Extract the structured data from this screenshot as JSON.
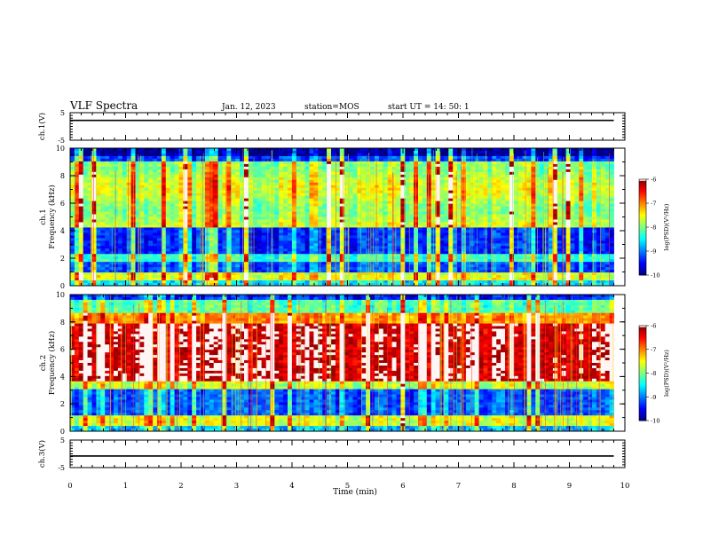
{
  "header": {
    "title": "VLF Spectra",
    "date": "Jan. 12, 2023",
    "station": "station=MOS",
    "start": "start UT =  14: 50: 1"
  },
  "chart_data": [
    {
      "type": "line",
      "panel": "ch1-waveform",
      "ylabel": "ch.1(V)",
      "ylim": [
        -5,
        5
      ],
      "yticks": [
        "5",
        "-5"
      ],
      "series": [
        {
          "x": [
            0,
            9.8
          ],
          "y": [
            2.2,
            2.2
          ]
        }
      ]
    },
    {
      "type": "heatmap",
      "panel": "ch1-spectrogram",
      "ylabel": "ch.1\nFrequency (kHz)",
      "ylim": [
        0,
        10
      ],
      "yticks": [
        "0",
        "2",
        "4",
        "6",
        "8",
        "10"
      ],
      "xlim": [
        0,
        9.8
      ],
      "colorbar": {
        "label": "log(PSD)(V²/Hz)",
        "ticks": [
          "-6",
          "-7",
          "-8",
          "-9",
          "-10"
        ],
        "range": [
          -10,
          -6
        ]
      }
    },
    {
      "type": "heatmap",
      "panel": "ch2-spectrogram",
      "ylabel": "ch.2\nFrequency (kHz)",
      "ylim": [
        0,
        10
      ],
      "yticks": [
        "0",
        "2",
        "4",
        "6",
        "8",
        "10"
      ],
      "xlim": [
        0,
        9.8
      ],
      "colorbar": {
        "label": "log(PSD)(V²/Hz)",
        "ticks": [
          "-6",
          "-7",
          "-8",
          "-9",
          "-10"
        ],
        "range": [
          -10,
          -6
        ]
      }
    },
    {
      "type": "line",
      "panel": "ch3-waveform",
      "ylabel": "ch.3(V)",
      "ylim": [
        -5,
        5
      ],
      "yticks": [
        "5",
        "-5"
      ],
      "series": [
        {
          "x": [
            0,
            9.8
          ],
          "y": [
            -0.8,
            -0.8
          ]
        }
      ]
    }
  ],
  "xaxis": {
    "label": "Time (min)",
    "ticks": [
      "0",
      "1",
      "2",
      "3",
      "4",
      "5",
      "6",
      "7",
      "8",
      "9",
      "10"
    ],
    "xlim": [
      0,
      10
    ]
  }
}
